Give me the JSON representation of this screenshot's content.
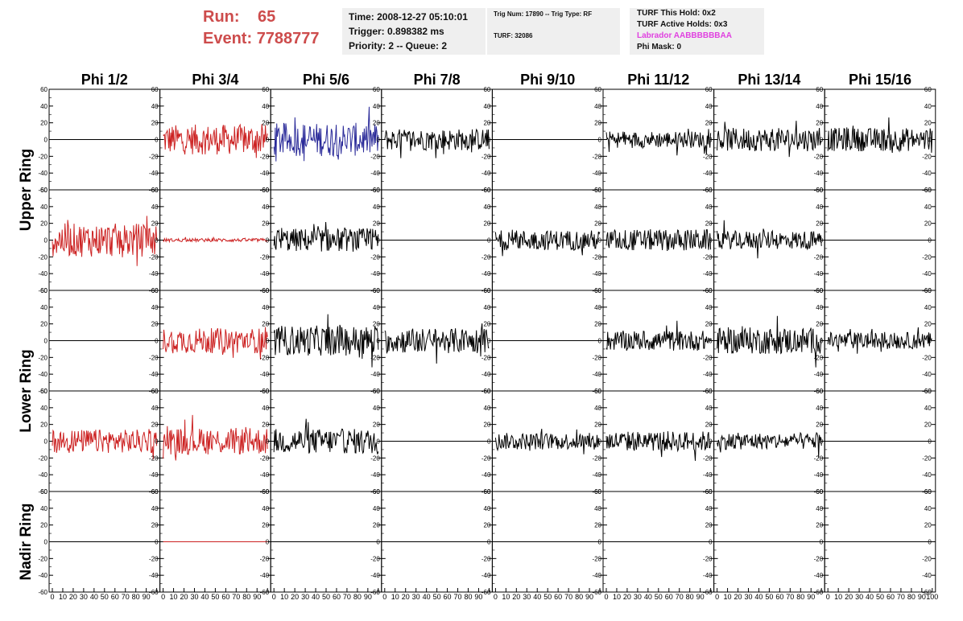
{
  "header": {
    "run_label": "Run:",
    "run_value": "65",
    "event_label": "Event:",
    "event_value": "7788777"
  },
  "info": {
    "time": "Time: 2008-12-27 05:10:01",
    "trigger": "Trigger: 0.898382 ms",
    "priority": "Priority: 2 -- Queue: 2",
    "trig_num": "Trig Num: 17890 -- Trig Type: RF",
    "turf": "TURF: 32086",
    "turf_this_hold": "TURF This Hold: 0x2",
    "turf_active_holds": "TURF Active Holds: 0x3",
    "labrador": "Labrador AABBBBBBAA",
    "phi_mask": "Phi Mask: 0"
  },
  "colors": {
    "red_trace": "#cc2222",
    "blue_trace": "#2a2a99",
    "black_trace": "#000000",
    "header_red": "#cd4c4c",
    "labrador_magenta": "#e040e0"
  },
  "chart_data": {
    "type": "line",
    "column_titles": [
      "Phi 1/2",
      "Phi 3/4",
      "Phi 5/6",
      "Phi 7/8",
      "Phi 9/10",
      "Phi 11/12",
      "Phi 13/14",
      "Phi 15/16"
    ],
    "row_titles": [
      "Upper Ring",
      "Lower Ring",
      "Nadir Ring"
    ],
    "rows_per_group": [
      2,
      2,
      1
    ],
    "ylim": [
      -60,
      60
    ],
    "xlim": [
      0,
      100
    ],
    "y_ticks": [
      -60,
      -40,
      -20,
      0,
      20,
      40,
      60
    ],
    "x_tick_labels": [
      "0",
      "10",
      "20",
      "30",
      "40",
      "50",
      "60",
      "70",
      "80",
      "90",
      "100"
    ],
    "grid": false,
    "panel_rows": [
      {
        "color": [
          "black",
          "red",
          "blue",
          "black",
          "black",
          "black",
          "black",
          "black"
        ],
        "amplitude": [
          0,
          18,
          20,
          13,
          0,
          10,
          14,
          14
        ]
      },
      {
        "color": [
          "red",
          "red",
          "black",
          "black",
          "black",
          "black",
          "black",
          "black"
        ],
        "amplitude": [
          20,
          2,
          14,
          0,
          12,
          13,
          11,
          0
        ]
      },
      {
        "color": [
          "black",
          "red",
          "black",
          "black",
          "black",
          "black",
          "black",
          "black"
        ],
        "amplitude": [
          0,
          15,
          18,
          15,
          0,
          12,
          16,
          10
        ]
      },
      {
        "color": [
          "red",
          "red",
          "black",
          "black",
          "black",
          "black",
          "black",
          "black"
        ],
        "amplitude": [
          14,
          16,
          15,
          0,
          10,
          12,
          10,
          0
        ]
      },
      {
        "color": [
          "black",
          "red",
          "black",
          "black",
          "black",
          "black",
          "black",
          "black"
        ],
        "amplitude": [
          0,
          0,
          0,
          0,
          0,
          0,
          0,
          0
        ]
      }
    ]
  }
}
